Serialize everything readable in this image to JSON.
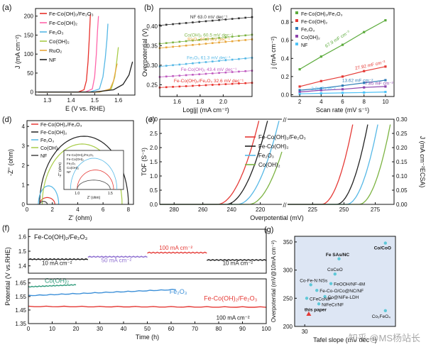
{
  "watermark": "知乎 @MS杨站长",
  "chart_data": [
    {
      "panel": "a",
      "type": "line",
      "xlabel": "E (V vs. RHE)",
      "ylabel": "J (mA cm⁻²)",
      "xlim": [
        1.25,
        1.67
      ],
      "ylim": [
        -8,
        220
      ],
      "xticks": [
        "1.3",
        "1.4",
        "1.5",
        "1.6"
      ],
      "yticks": [
        "0",
        "50",
        "100",
        "150",
        "200"
      ],
      "series": [
        {
          "name": "Fe-Co(OH)₂/Fe₂O₃",
          "color": "#e8302a",
          "x": [
            1.26,
            1.43,
            1.455,
            1.465,
            1.472,
            1.478,
            1.482
          ],
          "y": [
            0,
            0,
            6,
            30,
            80,
            150,
            205
          ]
        },
        {
          "name": "Fe-Co(OH)₂",
          "color": "#ff66aa",
          "x": [
            1.26,
            1.46,
            1.49,
            1.5,
            1.507,
            1.512,
            1.516
          ],
          "y": [
            0,
            0,
            8,
            40,
            100,
            160,
            200
          ]
        },
        {
          "name": "Fe₂O₃",
          "color": "#56b8e6",
          "x": [
            1.26,
            1.48,
            1.52,
            1.535,
            1.545,
            1.552,
            1.556
          ],
          "y": [
            0,
            0,
            8,
            40,
            90,
            140,
            180
          ]
        },
        {
          "name": "Co(OH)₂",
          "color": "#a8cc48",
          "x": [
            1.26,
            1.52,
            1.57,
            1.585,
            1.594,
            1.6
          ],
          "y": [
            0,
            0,
            8,
            40,
            85,
            118
          ]
        },
        {
          "name": "RuO₂",
          "color": "#e8a63a",
          "x": [
            1.26,
            1.52,
            1.565,
            1.58,
            1.588,
            1.595
          ],
          "y": [
            0,
            0,
            8,
            30,
            55,
            75
          ]
        },
        {
          "name": "NF",
          "color": "#222222",
          "x": [
            1.26,
            1.5,
            1.58,
            1.62,
            1.645,
            1.66
          ],
          "y": [
            0,
            0,
            6,
            20,
            45,
            80
          ]
        }
      ]
    },
    {
      "panel": "b",
      "type": "line",
      "xlabel": "Log|j| (mA cm⁻²)",
      "ylabel": "Overpotential (V)",
      "xlim": [
        1.45,
        2.25
      ],
      "ylim": [
        0.22,
        0.445
      ],
      "xticks": [
        "1.6",
        "1.8",
        "2.0"
      ],
      "yticks": [
        "0.25",
        "0.30",
        "0.35",
        "0.40"
      ],
      "series": [
        {
          "name": "NF",
          "color": "#333333",
          "label": "NF 63.0 mV dec⁻¹",
          "x": [
            1.45,
            2.25
          ],
          "y": [
            0.402,
            0.423
          ]
        },
        {
          "name": "Co(OH)₂",
          "color": "#7cb342",
          "label": "Co(OH)₂ 60.5 mV dec⁻¹",
          "x": [
            1.45,
            2.25
          ],
          "y": [
            0.355,
            0.378
          ]
        },
        {
          "name": "RuO₂",
          "color": "#e8a63a",
          "label": "RuO₂ 60.9 mV dec⁻¹",
          "x": [
            1.45,
            2.25
          ],
          "y": [
            0.344,
            0.366
          ]
        },
        {
          "name": "Fe₂O₃",
          "color": "#56b8e6",
          "label": "Fe₂O₃ 61.3 mV dec⁻¹",
          "x": [
            1.45,
            2.25
          ],
          "y": [
            0.297,
            0.319
          ]
        },
        {
          "name": "Fe-Co(OH)₂",
          "color": "#c05ac0",
          "label": "Fe-Co(OH)₂ 43.4 mV dec⁻¹",
          "x": [
            1.45,
            2.25
          ],
          "y": [
            0.27,
            0.286
          ]
        },
        {
          "name": "Fe-Co(OH)₂/Fe₂O₃",
          "color": "#e8302a",
          "label": "Fe-Co(OH)₂/Fe₂O₃ 32.6 mV dec⁻¹",
          "x": [
            1.45,
            2.25
          ],
          "y": [
            0.243,
            0.255
          ]
        }
      ]
    },
    {
      "panel": "c",
      "type": "scatter",
      "xlabel": "Scan rate (mV s⁻¹)",
      "ylabel": "j (mA cm⁻²)",
      "xlim": [
        1.2,
        10.8
      ],
      "ylim": [
        -0.02,
        0.95
      ],
      "xticks": [
        "2",
        "4",
        "6",
        "8",
        "10"
      ],
      "yticks": [
        "0.0",
        "0.2",
        "0.4",
        "0.6",
        "0.8"
      ],
      "series": [
        {
          "name": "Fe-Co(OH)₂/Fe₂O₃",
          "color": "#5cab3c",
          "label": "67.9 mF cm⁻²",
          "x": [
            2,
            4,
            6,
            8,
            10
          ],
          "y": [
            0.28,
            0.42,
            0.55,
            0.69,
            0.82
          ]
        },
        {
          "name": "Fe-Co(OH)₂",
          "color": "#e53935",
          "label": "27.92 mF cm⁻²",
          "x": [
            2,
            4,
            6,
            8,
            10
          ],
          "y": [
            0.09,
            0.15,
            0.2,
            0.26,
            0.31
          ]
        },
        {
          "name": "Fe₂O₃",
          "color": "#2e7bb6",
          "label": "13.62 mF cm⁻²",
          "x": [
            2,
            4,
            6,
            8,
            10
          ],
          "y": [
            0.05,
            0.07,
            0.1,
            0.13,
            0.16
          ]
        },
        {
          "name": "Co(OH)₂",
          "color": "#8e44ad",
          "label": "7.85 mF cm⁻²",
          "x": [
            2,
            4,
            6,
            8,
            10
          ],
          "y": [
            0.03,
            0.05,
            0.06,
            0.08,
            0.09
          ]
        },
        {
          "name": "NF",
          "color": "#4fc3f7",
          "label": "2.2mF cm⁻²",
          "x": [
            2,
            4,
            6,
            8,
            10
          ],
          "y": [
            0.01,
            0.015,
            0.02,
            0.024,
            0.03
          ]
        }
      ]
    },
    {
      "panel": "d",
      "type": "line",
      "xlabel": "Z' (ohm)",
      "ylabel": "-Z'' (ohm)",
      "xlim": [
        0,
        8.4
      ],
      "ylim": [
        0,
        4.3
      ],
      "xticks": [
        "0",
        "2",
        "4",
        "6",
        "8"
      ],
      "yticks": [
        "0",
        "1",
        "2",
        "3",
        "4"
      ],
      "series": [
        {
          "name": "Fe-Co(OH)₂/Fe₂O₃",
          "color": "#e53935",
          "arc": [
            1.0,
            2.2,
            0.35
          ]
        },
        {
          "name": "Fe-Co(OH)₂",
          "color": "#222222",
          "arc": [
            1.0,
            8.0,
            3.5
          ]
        },
        {
          "name": "Fe₂O₃",
          "color": "#56b8e6",
          "arc": [
            0.9,
            2.5,
            0.95
          ]
        },
        {
          "name": "Co(OH)₂",
          "color": "#a8cc48",
          "arc": [
            1.2,
            7.5,
            3.1
          ]
        },
        {
          "name": "NF",
          "color": "#444444",
          "arc": [
            1.0,
            1.6,
            0.15
          ]
        }
      ],
      "inset": {
        "xlabel": "Z' (ohm)",
        "ylabel": "-Z'' (ohm)",
        "xticks": [
          "1.0",
          "1.5"
        ],
        "legend": [
          "Fe-Co(OH)₂/Fe₂O₃",
          "Fe-Co(OH)₂",
          "Fe₂O₃",
          "Co(OH)₂",
          "NF"
        ]
      }
    },
    {
      "panel": "e",
      "type": "line",
      "xlabel": "Overpotential (mV)",
      "ylabel_left": "TOF (S⁻¹)",
      "ylabel_right": "J (mA cm⁻²ECSA)",
      "xlim_left": [
        290,
        205
      ],
      "xlim_right": [
        205,
        290
      ],
      "ylim": [
        0,
        0.3
      ],
      "xticks_left": [
        "280",
        "260",
        "240",
        "220"
      ],
      "xticks_right": [
        "225",
        "250",
        "275"
      ],
      "yticks_left": [
        "0.0",
        "0.5",
        "1.0",
        "1.5",
        "2.0",
        "2.5",
        "3.0"
      ],
      "yticks_right": [
        "0.00",
        "0.05",
        "0.10",
        "0.15",
        "0.20",
        "0.25",
        "0.30"
      ],
      "series": [
        {
          "name": "Fe-Co(OH)₂/Fe₂O₃",
          "color": "#e53935"
        },
        {
          "name": "Fe-Co(OH)₂",
          "color": "#222222"
        },
        {
          "name": "Fe₂O₃",
          "color": "#56b8e6"
        },
        {
          "name": "Co(OH)₂",
          "color": "#7cb342"
        }
      ]
    },
    {
      "panel": "f",
      "type": "line",
      "xlabel": "Time (h)",
      "ylabel": "Potential (V vs.RHE)",
      "xlim": [
        0,
        100
      ],
      "xticks": [
        "0",
        "10",
        "20",
        "30",
        "40",
        "50",
        "60",
        "70",
        "80",
        "90",
        "100"
      ],
      "top": {
        "ylim": [
          1.35,
          1.65
        ],
        "yticks": [
          "1.6",
          "1.5",
          "1.4"
        ],
        "title": "Fe-Co(OH)₂/Fe₂O₃",
        "steps": [
          {
            "label": "10 mA cm⁻²",
            "x": [
              0,
              25
            ],
            "y": 1.445,
            "color": "#222222"
          },
          {
            "label": "50 mA cm⁻²",
            "x": [
              25,
              50
            ],
            "y": 1.462,
            "color": "#8e6fd0"
          },
          {
            "label": "100 mA cm⁻²",
            "x": [
              50,
              75
            ],
            "y": 1.49,
            "color": "#e53935"
          },
          {
            "label": "10 mA cm⁻²",
            "x": [
              75,
              100
            ],
            "y": 1.44,
            "color": "#222222"
          }
        ]
      },
      "bottom": {
        "ylim": [
          1.35,
          1.68
        ],
        "yticks": [
          "1.65",
          "1.55",
          "1.45",
          "1.35"
        ],
        "note": "100 mA cm⁻²",
        "series": [
          {
            "name": "Co(OH)₂",
            "color": "#2e9a7a",
            "x": [
              0,
              20
            ],
            "y": [
              1.62,
              1.635
            ]
          },
          {
            "name": "Fe₂O₃",
            "color": "#3b8fd8",
            "x": [
              0,
              62
            ],
            "y": [
              1.555,
              1.6
            ]
          },
          {
            "name": "Fe-Co(OH)₂/Fe₂O₃",
            "color": "#e53935",
            "x": [
              0,
              100
            ],
            "y": [
              1.475,
              1.47
            ]
          }
        ]
      }
    },
    {
      "panel": "g",
      "type": "scatter",
      "xlabel": "Tafel slope (mV dec⁻¹)",
      "ylabel": "Overpotential (mV@10mA cm⁻²)",
      "xlim": [
        25,
        75
      ],
      "ylim": [
        200,
        360
      ],
      "xticks": [
        "30"
      ],
      "yticks": [
        "200",
        "250",
        "300",
        "350"
      ],
      "points": [
        {
          "label": "Co/CoO",
          "x": 70,
          "y": 348,
          "color": "#5ec8d8"
        },
        {
          "label": "Fe SAs/NC",
          "x": 47,
          "y": 320,
          "color": "#5ec8d8"
        },
        {
          "label": "CoCeO",
          "x": 45,
          "y": 293,
          "color": "#5ec8d8"
        },
        {
          "label": "Co-Fe-N NSs",
          "x": 33,
          "y": 274,
          "color": "#5ec8d8"
        },
        {
          "label": "FeOOH/NF-4M",
          "x": 43,
          "y": 276,
          "color": "#5ec8d8"
        },
        {
          "label": "Fe-Co-O/Co@NC/NF",
          "x": 36,
          "y": 264,
          "color": "#5ec8d8"
        },
        {
          "label": "Co@NiFe-LDH",
          "x": 40,
          "y": 253,
          "color": "#5ec8d8"
        },
        {
          "label": "CFeCoNiP",
          "x": 31,
          "y": 250,
          "color": "#5ec8d8"
        },
        {
          "label": "NiFeCr/NF",
          "x": 37,
          "y": 240,
          "color": "#5ec8d8"
        },
        {
          "label": "this paper",
          "x": 32,
          "y": 222,
          "color": "#e53935"
        },
        {
          "label": "Co₂FeO₄",
          "x": 70,
          "y": 228,
          "color": "#5ec8d8"
        }
      ]
    }
  ]
}
